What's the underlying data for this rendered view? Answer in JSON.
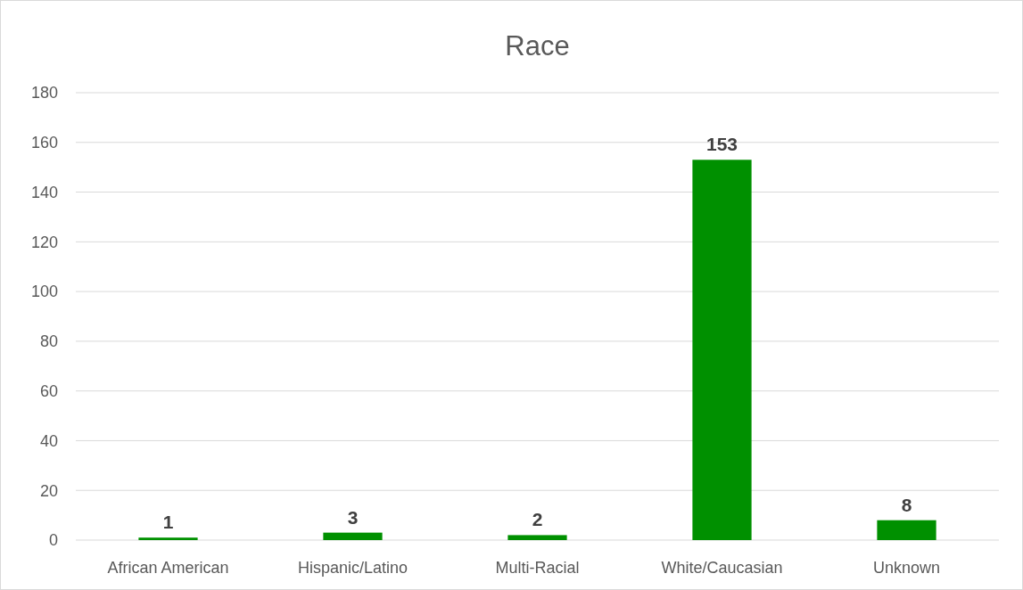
{
  "chart_data": {
    "type": "bar",
    "title": "Race",
    "categories": [
      "African American",
      "Hispanic/Latino",
      "Multi-Racial",
      "White/Caucasian",
      "Unknown"
    ],
    "values": [
      1,
      3,
      2,
      153,
      8
    ],
    "color": "#009000",
    "ylim": [
      0,
      180
    ],
    "yticks": [
      0,
      20,
      40,
      60,
      80,
      100,
      120,
      140,
      160,
      180
    ],
    "grid": "y",
    "data_labels": true
  }
}
